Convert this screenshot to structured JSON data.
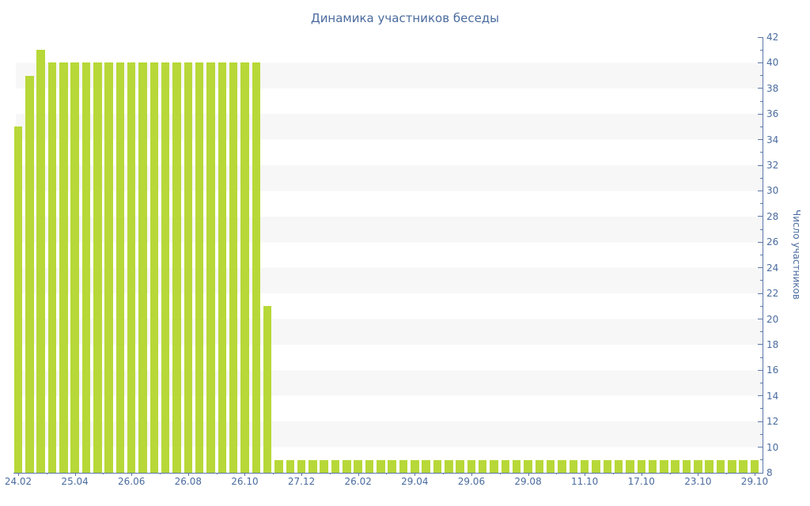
{
  "chart_data": {
    "type": "bar",
    "title": "Динамика участников беседы",
    "ylabel": "Число участников",
    "xlabel": "",
    "ylim": [
      8,
      42
    ],
    "y_major_tick_step": 2,
    "y_minor_tick_step": 1,
    "y_tick_labels": [
      "8",
      "10",
      "12",
      "14",
      "16",
      "18",
      "20",
      "22",
      "24",
      "26",
      "28",
      "30",
      "32",
      "34",
      "36",
      "38",
      "40",
      "42"
    ],
    "x_tick_labels": [
      "24.02",
      "25.04",
      "26.06",
      "26.08",
      "26.10",
      "27.12",
      "26.02",
      "29.04",
      "29.06",
      "29.08",
      "11.10",
      "17.10",
      "23.10",
      "29.10"
    ],
    "x_label_every_n_bars": 5,
    "values": [
      35,
      39,
      41,
      40,
      40,
      40,
      40,
      40,
      40,
      40,
      40,
      40,
      40,
      40,
      40,
      40,
      40,
      40,
      40,
      40,
      40,
      40,
      21,
      9,
      9,
      9,
      9,
      9,
      9,
      9,
      9,
      9,
      9,
      9,
      9,
      9,
      9,
      9,
      9,
      9,
      9,
      9,
      9,
      9,
      9,
      9,
      9,
      9,
      9,
      9,
      9,
      9,
      9,
      9,
      9,
      9,
      9,
      9,
      9,
      9,
      9,
      9,
      9,
      9,
      9,
      9
    ],
    "bar_color": "#b7d838",
    "text_color": "#4a6b9e",
    "axis_color": "#5b76a8",
    "stripe_colors": [
      "#ffffff",
      "#f7f7f7"
    ],
    "grid": "horizontal stripes every 2 units",
    "legend": "none"
  }
}
